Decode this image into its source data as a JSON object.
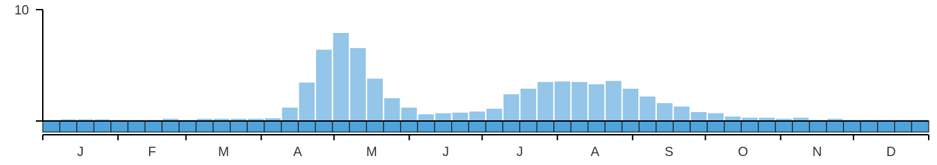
{
  "chart_data": {
    "type": "bar",
    "values": [
      0.1,
      0.15,
      0.15,
      0.15,
      0.1,
      0.1,
      0.1,
      0.2,
      0.1,
      0.2,
      0.2,
      0.2,
      0.2,
      0.25,
      1.2,
      3.45,
      6.4,
      7.9,
      6.55,
      3.8,
      2.05,
      1.2,
      0.6,
      0.7,
      0.75,
      0.85,
      1.1,
      2.4,
      2.9,
      3.5,
      3.55,
      3.5,
      3.3,
      3.6,
      2.9,
      2.2,
      1.6,
      1.3,
      0.8,
      0.7,
      0.4,
      0.3,
      0.3,
      0.2,
      0.3,
      0.1,
      0.2,
      0.1,
      0.1,
      0.1,
      0.1,
      0.1
    ],
    "color": "#93c6e8",
    "month_labels": [
      "J",
      "F",
      "M",
      "A",
      "M",
      "J",
      "J",
      "A",
      "S",
      "O",
      "N",
      "D"
    ],
    "ylim": [
      0,
      10
    ],
    "yticks": [
      10
    ]
  }
}
